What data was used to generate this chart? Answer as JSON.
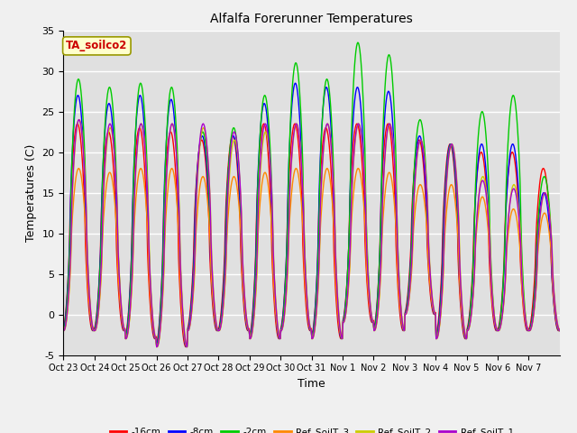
{
  "title": "Alfalfa Forerunner Temperatures",
  "xlabel": "Time",
  "ylabel": "Temperatures (C)",
  "ylim": [
    -5,
    35
  ],
  "annotation": "TA_soilco2",
  "plot_bg_color": "#e0e0e0",
  "fig_bg_color": "#f0f0f0",
  "series": [
    {
      "label": "-16cm",
      "color": "#ff0000"
    },
    {
      "label": "-8cm",
      "color": "#0000ff"
    },
    {
      "label": "-2cm",
      "color": "#00cc00"
    },
    {
      "label": "Ref_SoilT_3",
      "color": "#ff8800"
    },
    {
      "label": "Ref_SoilT_2",
      "color": "#cccc00"
    },
    {
      "label": "Ref_SoilT_1",
      "color": "#aa00cc"
    }
  ],
  "xtick_labels": [
    "Oct 23",
    "Oct 24",
    "Oct 25",
    "Oct 26",
    "Oct 27",
    "Oct 28",
    "Oct 29",
    "Oct 30",
    "Oct 31",
    "Nov 1",
    "Nov 2",
    "Nov 3",
    "Nov 4",
    "Nov 5",
    "Nov 6",
    "Nov 7"
  ],
  "ytick_values": [
    -5,
    0,
    5,
    10,
    15,
    20,
    25,
    30,
    35
  ],
  "n_days": 16,
  "pts_per_day": 48,
  "day_highs_2cm": [
    29,
    28,
    28.5,
    28,
    22.5,
    23,
    27,
    31,
    29,
    33.5,
    32,
    24,
    21,
    25,
    27,
    17
  ],
  "day_highs_8cm": [
    27,
    26,
    27,
    26.5,
    22,
    22,
    26,
    28.5,
    28,
    28,
    27.5,
    22,
    21,
    21,
    21,
    15
  ],
  "day_highs_16cm": [
    23.5,
    22.5,
    23,
    22.5,
    21.5,
    22,
    23.5,
    23.5,
    23,
    23.5,
    23.5,
    21.5,
    21,
    20,
    20,
    18
  ],
  "day_highs_ref3": [
    18,
    17.5,
    18,
    18,
    17,
    17,
    17.5,
    18,
    18,
    18,
    17.5,
    16,
    16,
    14.5,
    13,
    12.5
  ],
  "day_highs_ref2": [
    24,
    23,
    23.5,
    23.5,
    23,
    21.5,
    22.5,
    23.5,
    23.5,
    23.5,
    23.5,
    21.5,
    21,
    17,
    16,
    15
  ],
  "day_highs_ref1": [
    24,
    23.5,
    23.5,
    23.5,
    23.5,
    22.5,
    23.5,
    23.5,
    23.5,
    23.5,
    23.5,
    21.5,
    21,
    16.5,
    15.5,
    15
  ],
  "night_lows_2cm": [
    -2,
    -2,
    -3,
    -4,
    -2,
    -2,
    -3,
    -2,
    -3,
    -1,
    -2,
    0,
    -3,
    -2,
    -2,
    -2
  ],
  "night_lows_8cm": [
    -2,
    -2,
    -3,
    -4,
    -2,
    -2,
    -3,
    -2,
    -3,
    -1,
    -2,
    0,
    -3,
    -2,
    -2,
    -2
  ],
  "night_lows_16cm": [
    -2,
    -2,
    -3,
    -4,
    -2,
    -2,
    -3,
    -2,
    -3,
    -1,
    -2,
    0,
    -3,
    -2,
    -2,
    -2
  ],
  "night_lows_ref3": [
    -2,
    -2,
    -3,
    -4,
    -2,
    -2,
    -3,
    -2,
    -3,
    -1,
    -2,
    0,
    -3,
    -2,
    -2,
    -2
  ],
  "night_lows_ref2": [
    -2,
    -2,
    -3,
    -4,
    -2,
    -2,
    -3,
    -2,
    -3,
    -1,
    -2,
    0,
    -3,
    -2,
    -2,
    -2
  ],
  "night_lows_ref1": [
    -2,
    -2,
    -3,
    -4,
    -2,
    -2,
    -3,
    -2,
    -3,
    -1,
    -2,
    0,
    -3,
    -2,
    -2,
    -2
  ]
}
